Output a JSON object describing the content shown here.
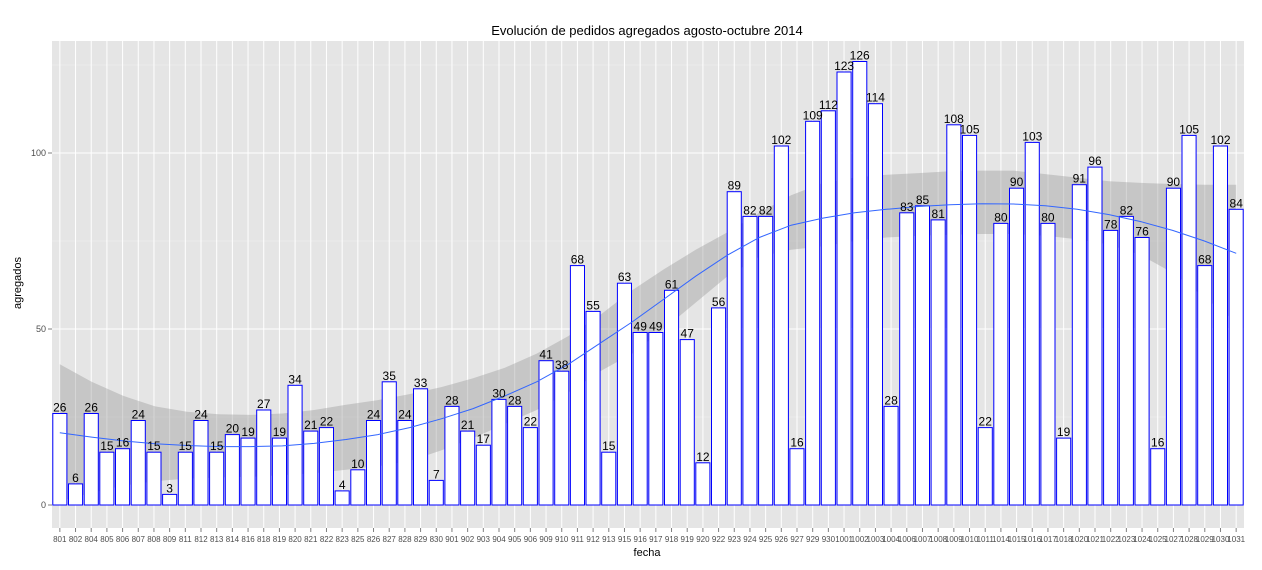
{
  "chart_data": {
    "type": "bar",
    "title": "Evolución de pedidos agregados agosto-octubre 2014",
    "xlabel": "fecha",
    "ylabel": "agregados",
    "ylim": [
      -6,
      134
    ],
    "yticks": [
      0,
      50,
      100
    ],
    "categories": [
      "801",
      "802",
      "804",
      "805",
      "806",
      "807",
      "808",
      "809",
      "811",
      "812",
      "813",
      "814",
      "816",
      "818",
      "819",
      "820",
      "821",
      "822",
      "823",
      "825",
      "826",
      "827",
      "828",
      "829",
      "830",
      "901",
      "902",
      "903",
      "904",
      "905",
      "906",
      "909",
      "910",
      "911",
      "912",
      "913",
      "915",
      "916",
      "917",
      "918",
      "919",
      "920",
      "922",
      "923",
      "924",
      "925",
      "926",
      "927",
      "929",
      "930",
      "1001",
      "1002",
      "1003",
      "1004",
      "1006",
      "1007",
      "1008",
      "1009",
      "1010",
      "1011",
      "1014",
      "1015",
      "1016",
      "1017",
      "1018",
      "1020",
      "1021",
      "1022",
      "1023",
      "1024",
      "1025",
      "1027",
      "1028",
      "1029",
      "1030",
      "1031"
    ],
    "values": [
      26,
      6,
      26,
      15,
      16,
      24,
      15,
      3,
      15,
      24,
      15,
      20,
      19,
      27,
      19,
      34,
      21,
      22,
      4,
      10,
      24,
      35,
      24,
      33,
      7,
      28,
      21,
      17,
      30,
      28,
      22,
      41,
      38,
      68,
      55,
      15,
      63,
      49,
      49,
      61,
      47,
      12,
      56,
      89,
      82,
      82,
      102,
      16,
      109,
      112,
      123,
      126,
      114,
      28,
      83,
      85,
      81,
      108,
      105,
      22,
      80,
      90,
      103,
      80,
      19,
      91,
      96,
      78,
      82,
      76,
      16,
      90,
      105,
      68,
      102,
      84
    ],
    "smooth": {
      "fit": [
        20.5,
        19.3,
        18.2,
        17.4,
        16.9,
        16.6,
        16.6,
        16.8,
        17.5,
        18.6,
        20.0,
        22.0,
        24.5,
        27.4,
        31.0,
        35.0,
        40.0,
        46.0,
        52.0,
        58.5,
        65.0,
        71.0,
        76.0,
        79.5,
        81.5,
        83.0,
        84.0,
        84.8,
        85.3,
        85.6,
        85.5,
        85.0,
        84.0,
        82.5,
        80.5,
        78.0,
        75.0,
        71.5
      ],
      "upper": [
        40.0,
        35.0,
        31.0,
        28.0,
        26.5,
        25.8,
        25.6,
        26.0,
        27.0,
        28.5,
        29.8,
        31.5,
        33.5,
        36.0,
        39.0,
        43.0,
        48.0,
        54.0,
        61.0,
        67.0,
        72.5,
        77.5,
        83.0,
        88.0,
        91.5,
        93.0,
        93.8,
        94.3,
        94.8,
        95.0,
        95.0,
        94.0,
        93.0,
        92.0,
        91.5,
        91.2,
        91.0,
        91.0
      ],
      "lower": [
        1.0,
        3.5,
        5.5,
        6.8,
        7.5,
        7.8,
        8.0,
        8.5,
        9.0,
        10.0,
        11.0,
        12.5,
        15.5,
        19.0,
        23.0,
        27.0,
        32.0,
        38.0,
        43.0,
        50.0,
        57.5,
        65.0,
        70.5,
        72.5,
        73.5,
        75.0,
        76.0,
        76.5,
        76.8,
        77.0,
        77.0,
        76.5,
        75.5,
        74.0,
        71.0,
        66.0,
        59.0,
        52.0
      ]
    }
  }
}
